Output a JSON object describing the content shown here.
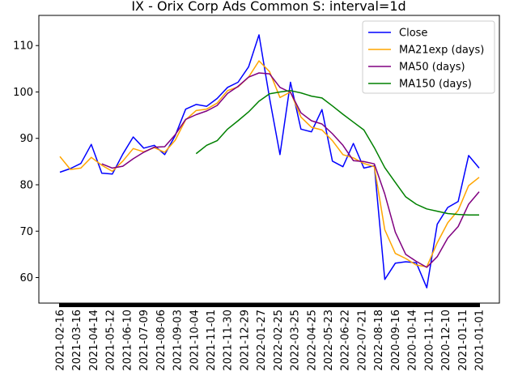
{
  "chart_data": {
    "type": "line",
    "title": "IX - Orix Corp Ads Common S: interval=1d",
    "xlabel": "",
    "ylabel": "",
    "x_tick_labels": [
      "2021-02-16",
      "2021-03-16",
      "2021-04-14",
      "2021-05-12",
      "2021-06-10",
      "2021-07-09",
      "2021-08-06",
      "2021-09-03",
      "2021-10-04",
      "2021-11-01",
      "2021-11-30",
      "2021-12-29",
      "2022-01-27",
      "2022-02-25",
      "2022-03-25",
      "2022-04-25",
      "2022-05-23",
      "2022-06-22",
      "2022-07-21",
      "2022-08-18",
      "2020-09-16",
      "2020-10-14",
      "2020-11-11",
      "2020-12-10",
      "2021-01-11",
      "2021-01-01"
    ],
    "y_ticks": [
      60,
      70,
      80,
      90,
      100,
      110
    ],
    "ylim": [
      54.5,
      116.5
    ],
    "x_count": 26,
    "grid": false,
    "legend_position": "top-right",
    "series": [
      {
        "name": "Close",
        "color": "#0000ff",
        "values": [
          82.7,
          83.5,
          84.6,
          88.7,
          82.5,
          82.3,
          86.6,
          90.3,
          87.9,
          88.5,
          86.5,
          90.6,
          96.3,
          97.3,
          96.9,
          98.6,
          101.0,
          102.1,
          105.4,
          112.3,
          98.7,
          86.5,
          102.1,
          92.0,
          91.4,
          96.2,
          85.1,
          83.9,
          88.9,
          83.6,
          84.1,
          59.6,
          63.1,
          63.4,
          63.2,
          57.8,
          71.5,
          75.1,
          76.4,
          86.3,
          83.6
        ]
      },
      {
        "name": "MA21exp (days)",
        "color": "#ffa500",
        "values": [
          86.1,
          83.3,
          83.6,
          85.9,
          84.2,
          82.9,
          85.1,
          87.8,
          87.1,
          88.0,
          87.0,
          89.6,
          94.0,
          96.0,
          96.3,
          97.6,
          100.3,
          101.1,
          103.2,
          106.7,
          104.4,
          98.8,
          100.0,
          94.6,
          92.4,
          91.8,
          89.5,
          86.5,
          85.8,
          84.6,
          83.9,
          70.3,
          65.2,
          64.1,
          62.7,
          62.3,
          67.5,
          71.8,
          74.5,
          79.8,
          81.6
        ]
      },
      {
        "name": "MA50 (days)",
        "color": "#800080",
        "values": [
          null,
          null,
          null,
          null,
          84.5,
          83.6,
          84.0,
          85.6,
          87.0,
          88.1,
          88.2,
          90.8,
          94.1,
          95.1,
          95.9,
          97.1,
          99.7,
          101.2,
          103.2,
          104.1,
          103.9,
          101.0,
          99.9,
          95.5,
          93.8,
          93.1,
          91.0,
          88.5,
          85.2,
          85.0,
          84.5,
          78.0,
          69.8,
          65.0,
          63.5,
          62.2,
          64.5,
          68.5,
          71.0,
          75.8,
          78.5
        ]
      },
      {
        "name": "MA150 (days)",
        "color": "#008000",
        "values": [
          null,
          null,
          null,
          null,
          null,
          null,
          null,
          null,
          null,
          null,
          null,
          null,
          null,
          86.7,
          88.5,
          89.5,
          92.0,
          93.8,
          95.7,
          98.0,
          99.6,
          100.0,
          100.3,
          99.8,
          99.1,
          98.7,
          97.0,
          95.2,
          93.5,
          91.8,
          88.0,
          83.7,
          80.5,
          77.4,
          75.8,
          74.8,
          74.3,
          73.8,
          73.6,
          73.5,
          73.5
        ]
      }
    ]
  }
}
